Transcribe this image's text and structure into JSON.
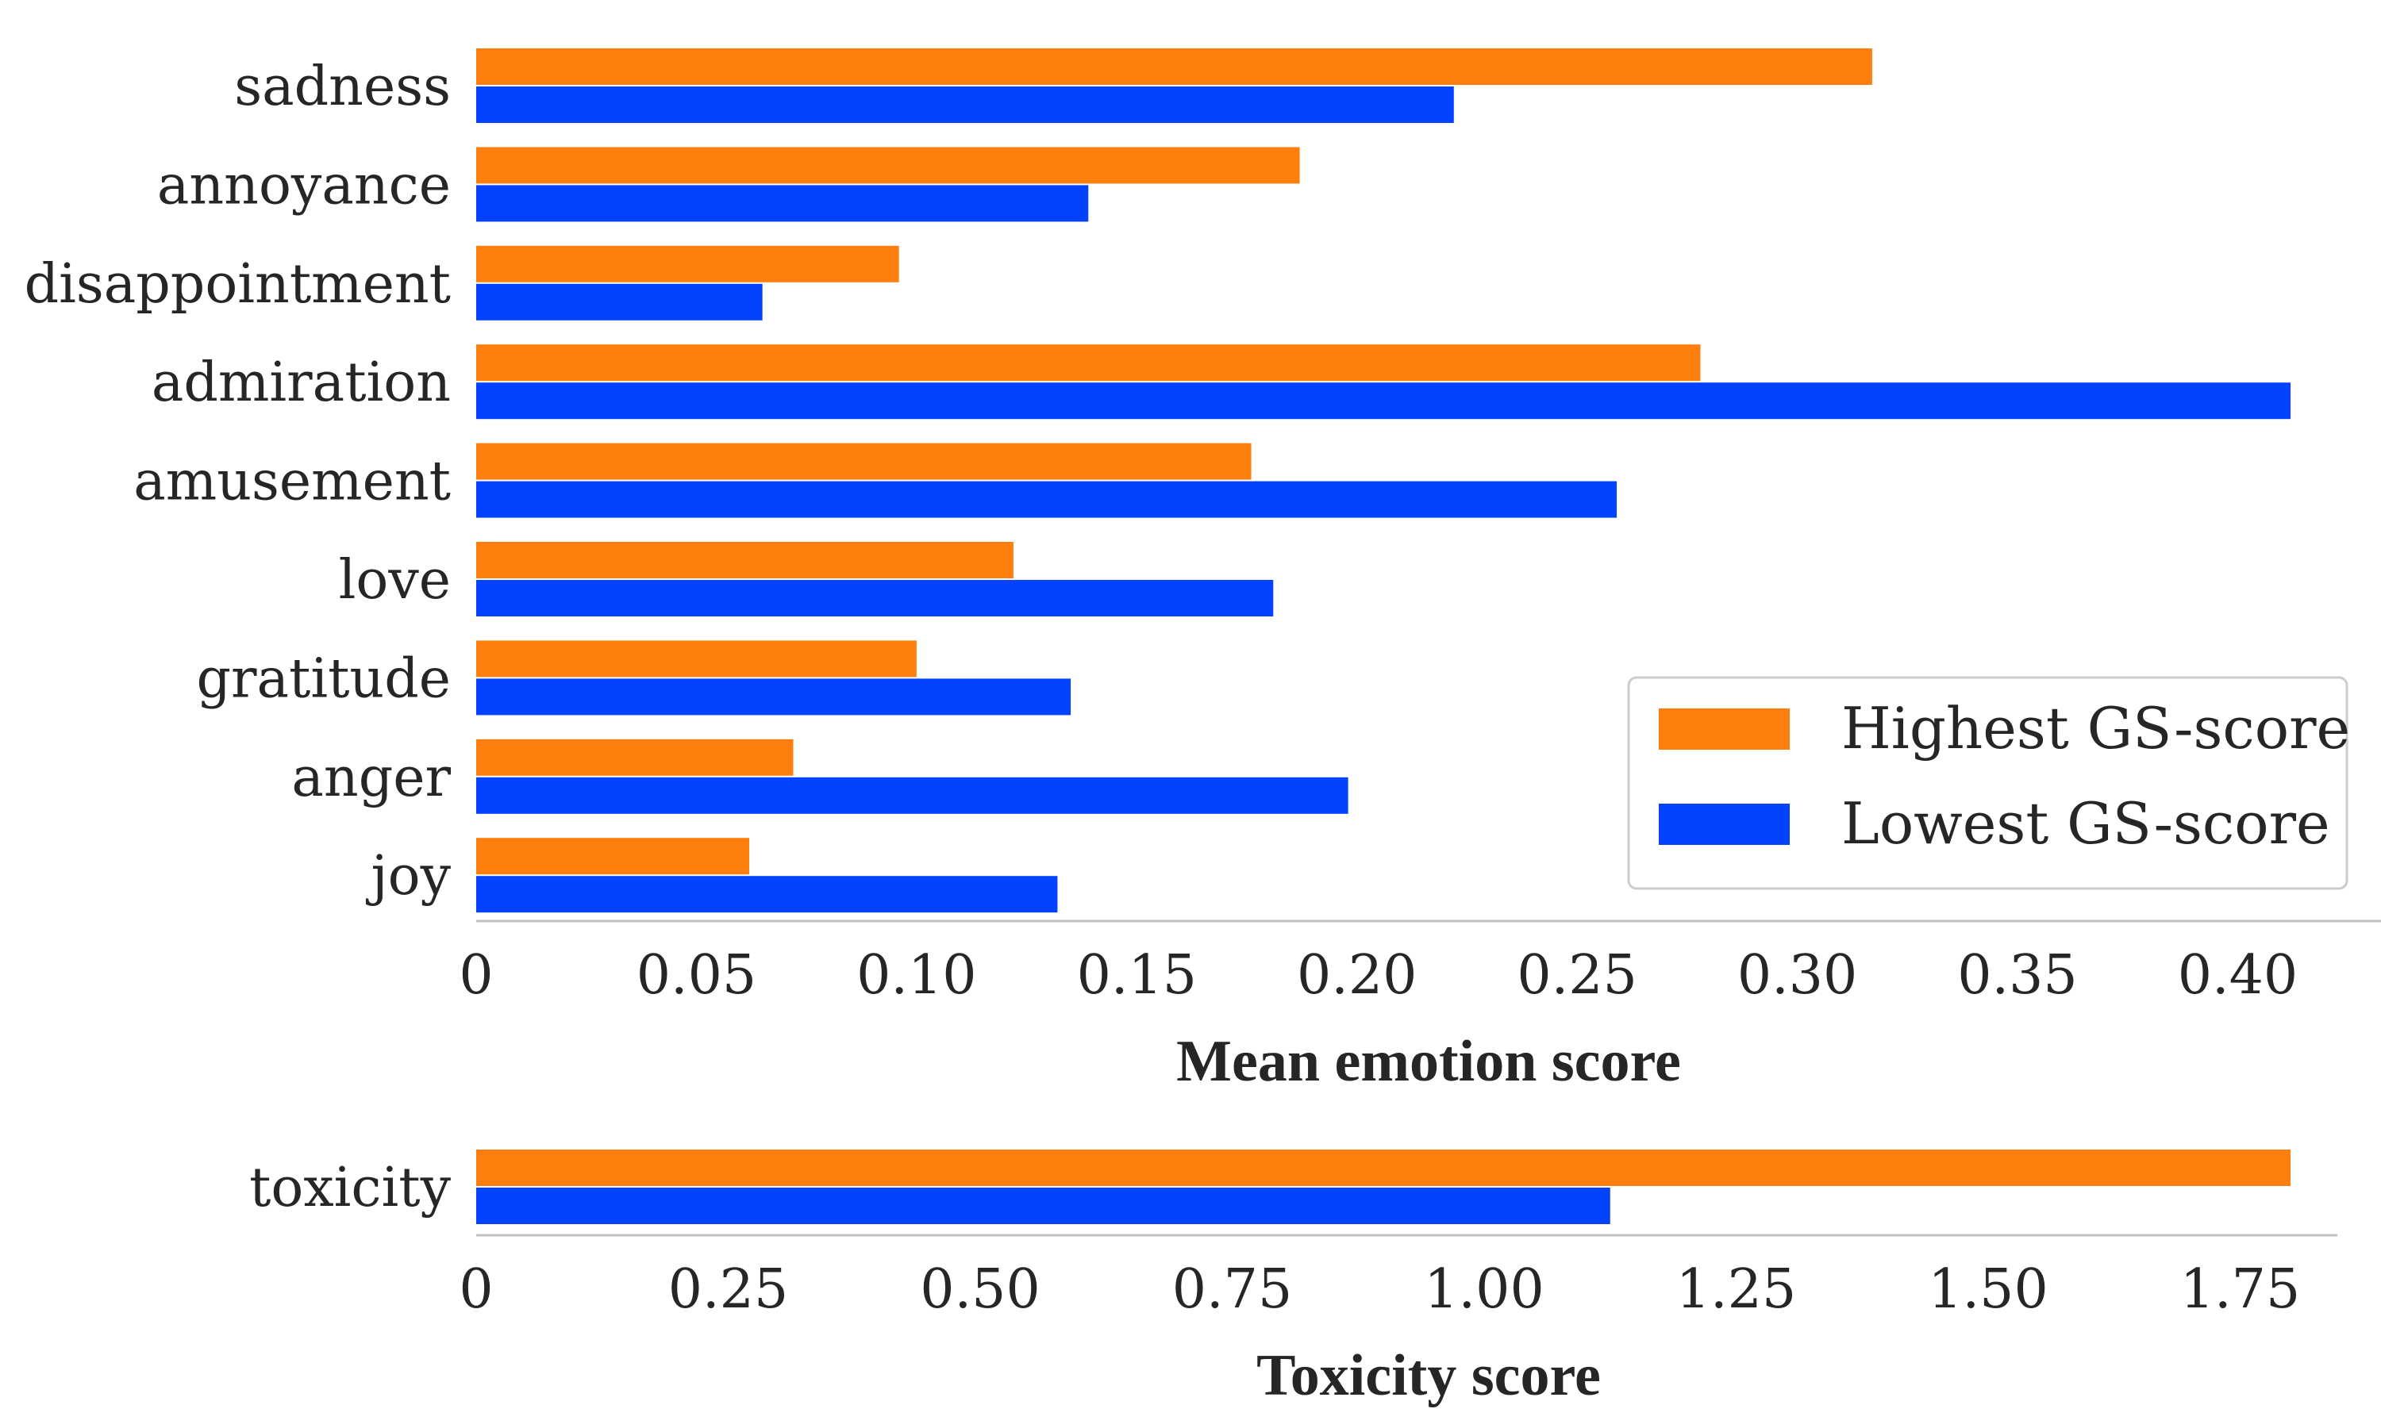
{
  "colors": {
    "highest": "#ff7f0e",
    "lowest": "#0343ff",
    "axis": "#bfbfbf",
    "legend_border": "#cccccc"
  },
  "chart_data": [
    {
      "type": "bar",
      "orientation": "horizontal",
      "categories": [
        "sadness",
        "annoyance",
        "disappointment",
        "admiration",
        "amusement",
        "love",
        "gratitude",
        "anger",
        "joy"
      ],
      "series": [
        {
          "name": "Highest GS-score",
          "values": [
            0.317,
            0.187,
            0.096,
            0.278,
            0.176,
            0.122,
            0.1,
            0.072,
            0.062
          ]
        },
        {
          "name": "Lowest GS-score",
          "values": [
            0.222,
            0.139,
            0.065,
            0.412,
            0.259,
            0.181,
            0.135,
            0.198,
            0.132
          ]
        }
      ],
      "xlabel": "Mean emotion score",
      "xlim": [
        0,
        0.44
      ],
      "xticks": [
        0,
        0.05,
        0.1,
        0.15,
        0.2,
        0.25,
        0.3,
        0.35,
        0.4
      ],
      "xtick_labels": [
        "0",
        "0.05",
        "0.10",
        "0.15",
        "0.20",
        "0.25",
        "0.30",
        "0.35",
        "0.40"
      ],
      "legend": {
        "position": "lower-right",
        "entries": [
          "Highest GS-score",
          "Lowest GS-score"
        ]
      }
    },
    {
      "type": "bar",
      "orientation": "horizontal",
      "categories": [
        "toxicity"
      ],
      "series": [
        {
          "name": "Highest GS-score",
          "values": [
            1.8
          ]
        },
        {
          "name": "Lowest GS-score",
          "values": [
            1.125
          ]
        }
      ],
      "xlabel": "Toxicity score",
      "xlim": [
        0,
        1.88
      ],
      "xticks": [
        0,
        0.25,
        0.5,
        0.75,
        1.0,
        1.25,
        1.5,
        1.75
      ],
      "xtick_labels": [
        "0",
        "0.25",
        "0.50",
        "0.75",
        "1.00",
        "1.25",
        "1.50",
        "1.75"
      ]
    }
  ]
}
